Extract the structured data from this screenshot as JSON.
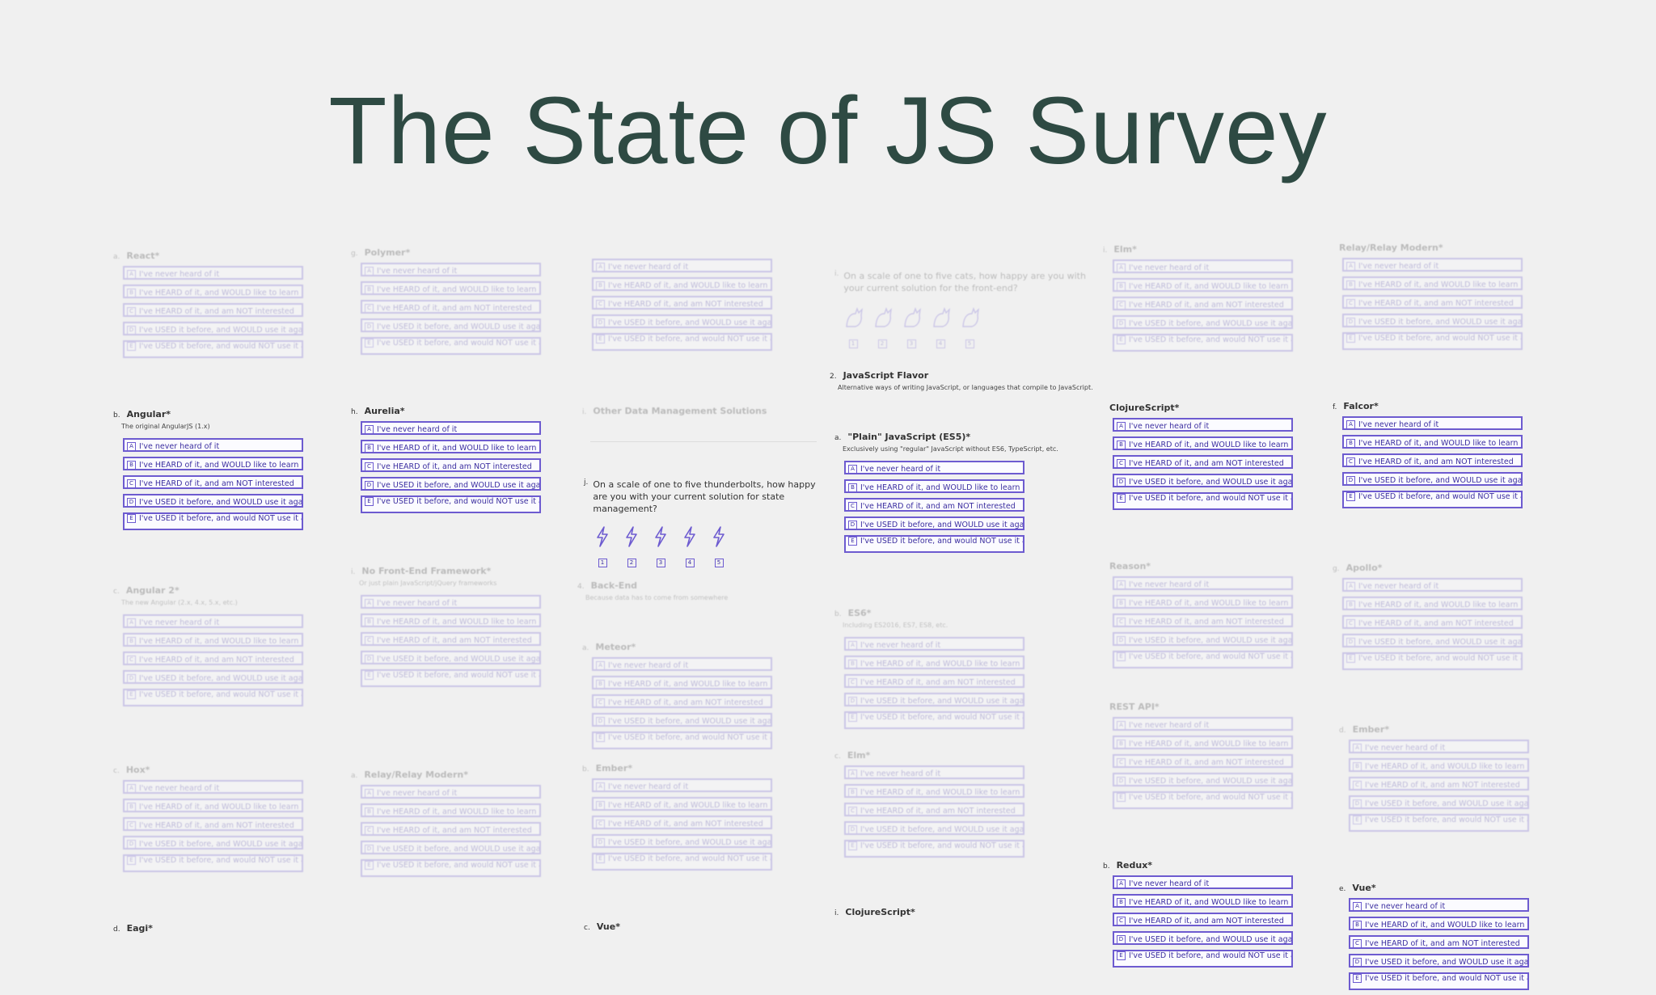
{
  "title": "The State of JS Survey",
  "opts": [
    "I've never heard of it",
    "I've HEARD of it, and WOULD like to learn it",
    "I've HEARD of it, and am NOT interested",
    "I've USED it before, and WOULD use it again",
    "I've USED it before, and would NOT use it again"
  ],
  "keys": [
    "A",
    "B",
    "C",
    "D",
    "E"
  ],
  "questions": {
    "react": {
      "letter": "a.",
      "label": "React*"
    },
    "angular": {
      "letter": "b.",
      "label": "Angular*",
      "desc": "The original AngularJS (1.x)"
    },
    "angular2": {
      "letter": "c.",
      "label": "Angular 2*",
      "desc": "The new Angular (2.x, 4.x, 5.x, etc.)"
    },
    "hox": {
      "letter": "c.",
      "label": "Hox*"
    },
    "eagi": {
      "letter": "d.",
      "label": "Eagi*"
    },
    "polymer": {
      "letter": "g.",
      "label": "Polymer*"
    },
    "aurelia": {
      "letter": "h.",
      "label": "Aurelia*"
    },
    "nofe": {
      "letter": "i.",
      "label": "No Front-End Framework*",
      "desc": "Or just plain JavaScript/jQuery frameworks"
    },
    "relay2": {
      "letter": "a.",
      "label": "Relay/Relay Modern*"
    },
    "other_dm": {
      "letter": "i.",
      "label": "Other Data Management Solutions"
    },
    "thunder": {
      "letter": "j.",
      "label": "On a scale of one to five thunderbolts, how happy are you with your current solution for state management?"
    },
    "backend": {
      "letter": "4.",
      "label": "Back-End",
      "desc": "Because data has to come from somewhere"
    },
    "meteor": {
      "letter": "a.",
      "label": "Meteor*"
    },
    "ember": {
      "letter": "b.",
      "label": "Ember*"
    },
    "vue_c": {
      "letter": "c.",
      "label": "Vue*"
    },
    "cats": {
      "letter": "i.",
      "label": "On a scale of one to five cats, how happy are you with your current solution for the front-end?"
    },
    "jsflavor": {
      "letter": "2.",
      "label": "JavaScript Flavor",
      "desc": "Alternative ways of writing JavaScript, or languages that compile to JavaScript."
    },
    "plainjs": {
      "letter": "a.",
      "label": "\"Plain\" JavaScript (ES5)*",
      "desc": "Exclusively using \"regular\" JavaScript without ES6, TypeScript, etc."
    },
    "es6": {
      "letter": "b.",
      "label": "ES6*",
      "desc": "Including ES2016, ES7, ES8, etc."
    },
    "elm_d": {
      "letter": "c.",
      "label": "Elm*"
    },
    "clojure_d": {
      "letter": "i.",
      "label": "ClojureScript*"
    },
    "elm_e": {
      "letter": "i.",
      "label": "Elm*"
    },
    "clojure_e": {
      "letter": "",
      "label": "ClojureScript*"
    },
    "reason": {
      "letter": "",
      "label": "Reason*"
    },
    "restapi": {
      "letter": "",
      "label": "REST API*"
    },
    "redux": {
      "letter": "b.",
      "label": "Redux*"
    },
    "relay_f": {
      "letter": "",
      "label": "Relay/Relay Modern*"
    },
    "falcor": {
      "letter": "f.",
      "label": "Falcor*"
    },
    "apollo": {
      "letter": "g.",
      "label": "Apollo*"
    },
    "ember_f": {
      "letter": "d.",
      "label": "Ember*"
    },
    "vue_f": {
      "letter": "e.",
      "label": "Vue*"
    }
  },
  "rating_numbers": [
    "1",
    "2",
    "3",
    "4",
    "5"
  ],
  "icons": {
    "thunderbolt": "thunderbolt-icon",
    "cat": "cat-icon"
  },
  "colors": {
    "title": "#2e4a43",
    "accent": "#6d5bd0",
    "background": "#f0f0f0"
  }
}
